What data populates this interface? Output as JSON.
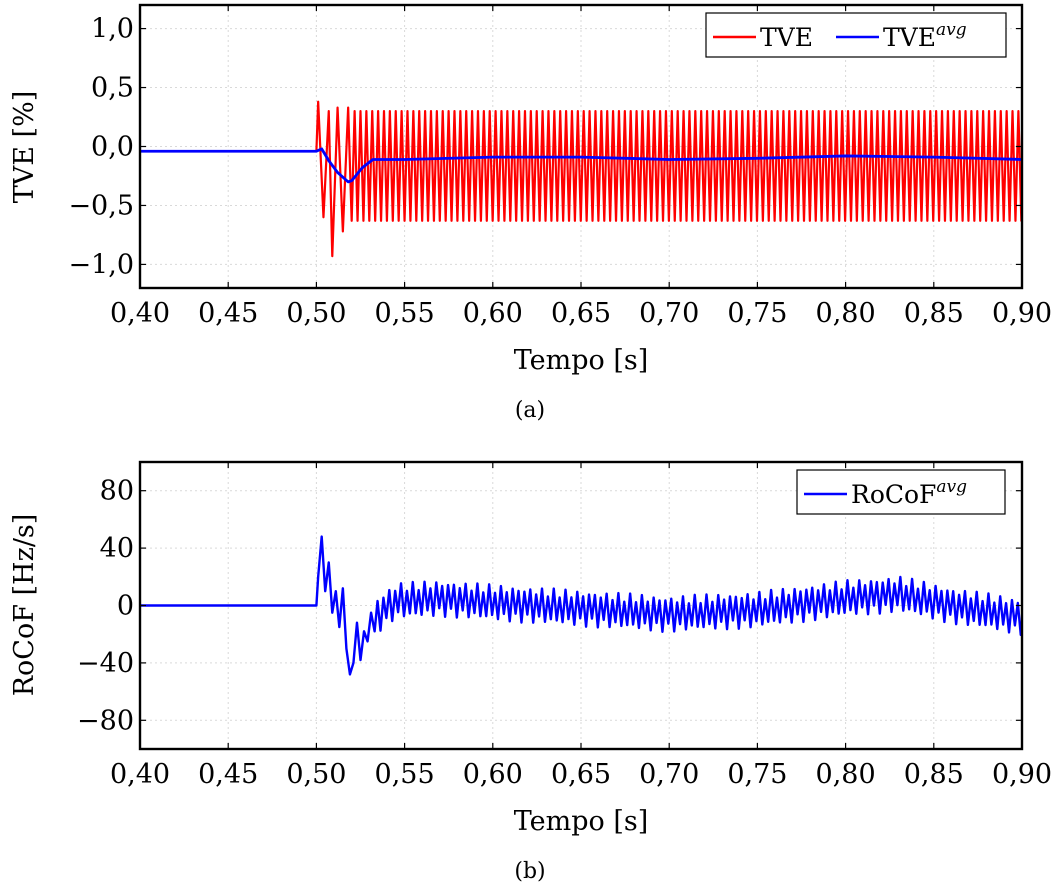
{
  "chart_data": [
    {
      "type": "line",
      "caption": "(a)",
      "xlabel": "Tempo [s]",
      "ylabel": "TVE [%]",
      "xlim": [
        0.4,
        0.9
      ],
      "ylim": [
        -1.2,
        1.2
      ],
      "x_ticks": [
        "0,40",
        "0,45",
        "0,50",
        "0,55",
        "0,60",
        "0,65",
        "0,70",
        "0,75",
        "0,80",
        "0,85",
        "0,90"
      ],
      "y_ticks": [
        "1,0",
        "0,5",
        "0,0",
        "−0,5",
        "−1,0"
      ],
      "y_tick_values": [
        1.0,
        0.5,
        0.0,
        -0.5,
        -1.0
      ],
      "grid": true,
      "legend_position": "top-right",
      "series": [
        {
          "name": "TVE",
          "color": "#ff0000",
          "baseline_until": 0.5,
          "baseline_value": -0.04,
          "oscillation_period": 0.00333,
          "transient_points": [
            [
              0.501,
              0.38
            ],
            [
              0.504,
              -0.6
            ],
            [
              0.507,
              0.3
            ],
            [
              0.509,
              -0.93
            ],
            [
              0.512,
              0.33
            ],
            [
              0.515,
              -0.72
            ],
            [
              0.518,
              0.33
            ],
            [
              0.52,
              -0.63
            ]
          ],
          "steady_upper": 0.3,
          "steady_lower": -0.63
        },
        {
          "name": "TVE",
          "name_sup": "avg",
          "color": "#0000ff",
          "points": [
            [
              0.4,
              -0.04
            ],
            [
              0.5,
              -0.04
            ],
            [
              0.503,
              -0.02
            ],
            [
              0.507,
              -0.12
            ],
            [
              0.512,
              -0.22
            ],
            [
              0.518,
              -0.3
            ],
            [
              0.52,
              -0.29
            ],
            [
              0.526,
              -0.18
            ],
            [
              0.532,
              -0.11
            ],
            [
              0.55,
              -0.11
            ],
            [
              0.6,
              -0.09
            ],
            [
              0.65,
              -0.09
            ],
            [
              0.7,
              -0.11
            ],
            [
              0.75,
              -0.1
            ],
            [
              0.8,
              -0.08
            ],
            [
              0.85,
              -0.09
            ],
            [
              0.9,
              -0.11
            ]
          ]
        }
      ]
    },
    {
      "type": "line",
      "caption": "(b)",
      "xlabel": "Tempo [s]",
      "ylabel": "RoCoF [Hz/s]",
      "xlim": [
        0.4,
        0.9
      ],
      "ylim": [
        -100,
        100
      ],
      "x_ticks": [
        "0,40",
        "0,45",
        "0,50",
        "0,55",
        "0,60",
        "0,65",
        "0,70",
        "0,75",
        "0,80",
        "0,85",
        "0,90"
      ],
      "y_ticks": [
        "80",
        "40",
        "0",
        "−40",
        "−80"
      ],
      "y_tick_values": [
        80,
        40,
        0,
        -40,
        -80
      ],
      "grid": true,
      "legend_position": "top-right",
      "series": [
        {
          "name": "RoCoF",
          "name_sup": "avg",
          "color": "#0000ff",
          "baseline_until": 0.5,
          "baseline_value": 0,
          "transient_points": [
            [
              0.5,
              0
            ],
            [
              0.501,
              20
            ],
            [
              0.503,
              48
            ],
            [
              0.505,
              10
            ],
            [
              0.507,
              30
            ],
            [
              0.509,
              -5
            ],
            [
              0.511,
              10
            ],
            [
              0.513,
              -15
            ],
            [
              0.515,
              12
            ],
            [
              0.517,
              -30
            ],
            [
              0.519,
              -48
            ],
            [
              0.521,
              -40
            ],
            [
              0.523,
              -12
            ],
            [
              0.525,
              -38
            ],
            [
              0.527,
              -18
            ],
            [
              0.529,
              -25
            ],
            [
              0.531,
              -5
            ],
            [
              0.533,
              -18
            ]
          ],
          "oscillation_period": 0.00333,
          "envelope_center": [
            [
              0.533,
              -8
            ],
            [
              0.545,
              3
            ],
            [
              0.57,
              5
            ],
            [
              0.6,
              2
            ],
            [
              0.65,
              -2
            ],
            [
              0.7,
              -6
            ],
            [
              0.75,
              -3
            ],
            [
              0.8,
              5
            ],
            [
              0.83,
              8
            ],
            [
              0.86,
              0
            ],
            [
              0.9,
              -8
            ]
          ],
          "envelope_amplitude": 12
        }
      ]
    }
  ]
}
